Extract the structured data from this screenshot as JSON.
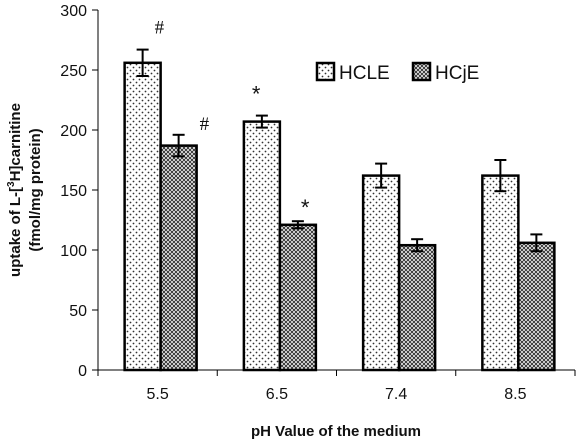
{
  "chart_data": {
    "type": "bar",
    "xlabel": "pH Value of the medium",
    "ylabel_line1": "uptake of L-[",
    "ylabel_sup": "3",
    "ylabel_line1_end": "H]carnitine",
    "ylabel_line2": "(fmol/mg protein)",
    "ylim": [
      0,
      300
    ],
    "yticks": [
      0,
      50,
      100,
      150,
      200,
      250,
      300
    ],
    "categories": [
      "5.5",
      "6.5",
      "7.4",
      "8.5"
    ],
    "series": [
      {
        "name": "HCLE",
        "pattern": "dots",
        "values": [
          256,
          207,
          162,
          162
        ],
        "errors": [
          11,
          5,
          10,
          13
        ],
        "annotations": [
          "#",
          "*",
          "",
          ""
        ]
      },
      {
        "name": "HCjE",
        "pattern": "crosshatch",
        "values": [
          187,
          121,
          104,
          106
        ],
        "errors": [
          9,
          3,
          5,
          7
        ],
        "annotations": [
          "#",
          "*",
          "",
          ""
        ]
      }
    ],
    "legend_position": "top-right",
    "grid": false
  }
}
